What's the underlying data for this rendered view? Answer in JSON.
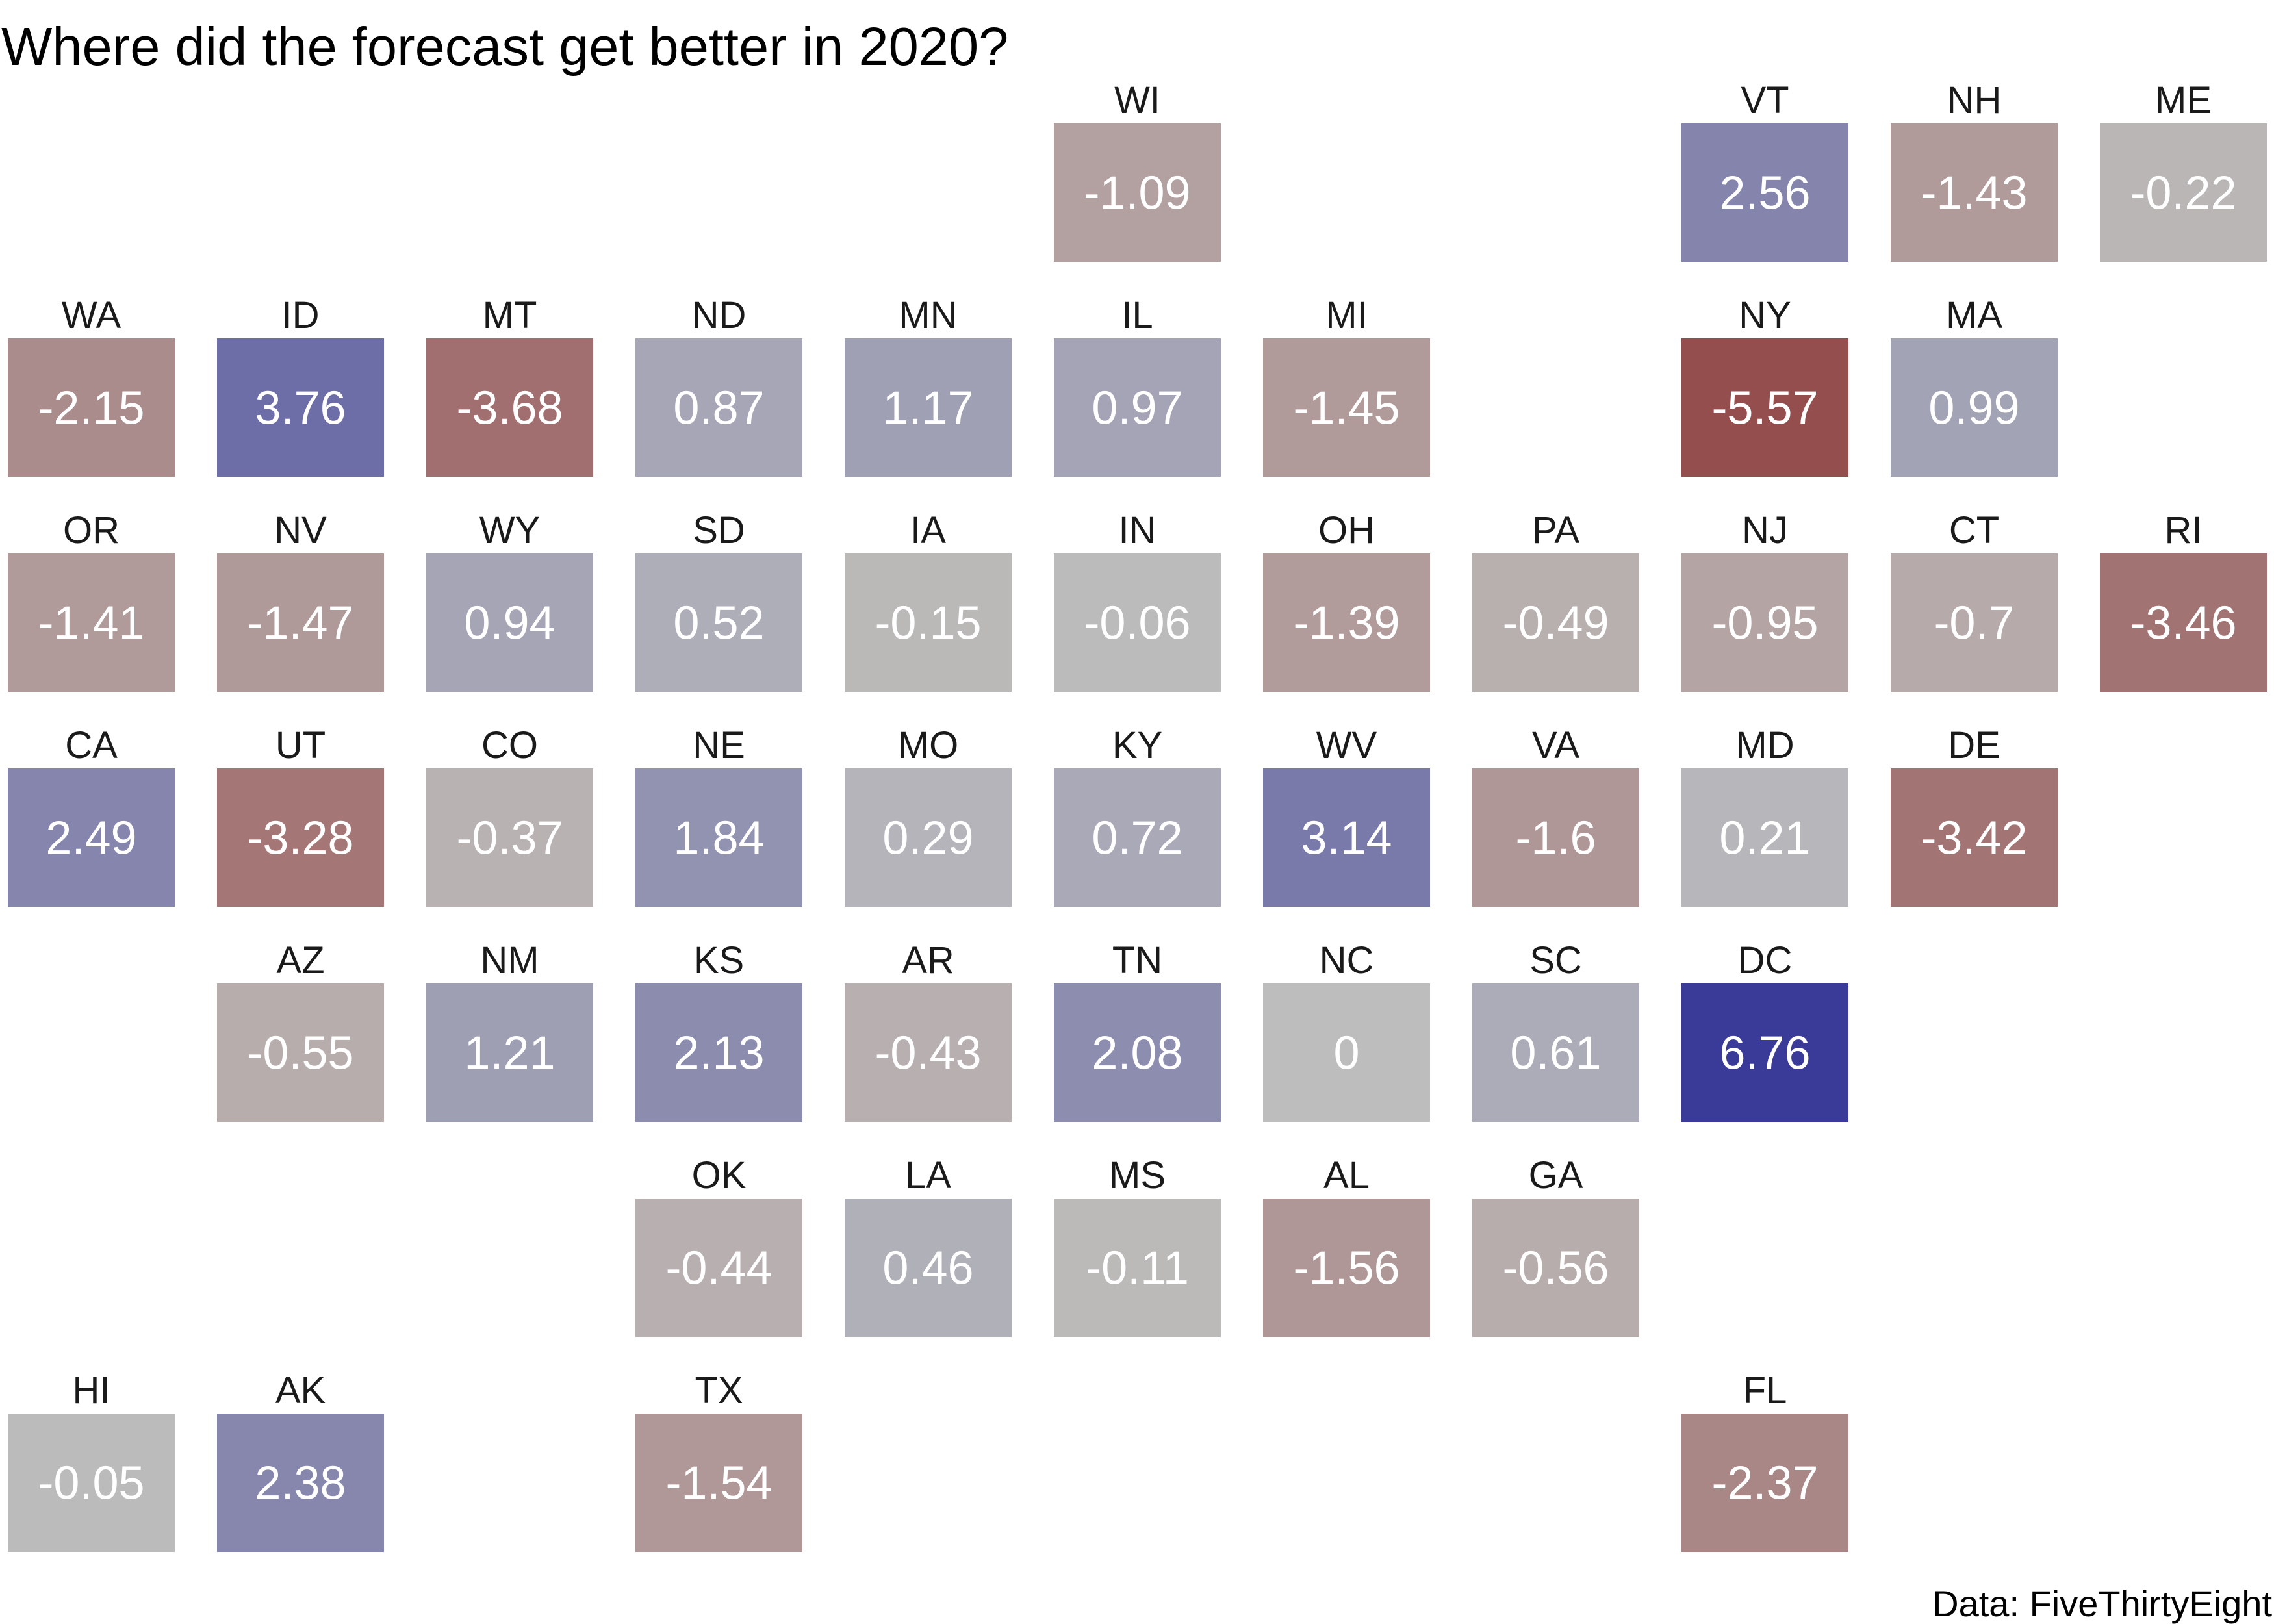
{
  "chart_data": {
    "type": "heatmap",
    "title": "Where did the forecast get better in 2020?",
    "caption": "Data: FiveThirtyEight",
    "color_scale": {
      "negative": "#8e3a3a",
      "neutral": "#bdbdbd",
      "positive": "#3a3a98",
      "min": -6.76,
      "max": 6.76
    },
    "tiles": [
      {
        "state": "WI",
        "value": -1.09,
        "row": 0,
        "col": 5
      },
      {
        "state": "VT",
        "value": 2.56,
        "row": 0,
        "col": 8
      },
      {
        "state": "NH",
        "value": -1.43,
        "row": 0,
        "col": 9
      },
      {
        "state": "ME",
        "value": -0.22,
        "row": 0,
        "col": 10
      },
      {
        "state": "WA",
        "value": -2.15,
        "row": 1,
        "col": 0
      },
      {
        "state": "ID",
        "value": 3.76,
        "row": 1,
        "col": 1
      },
      {
        "state": "MT",
        "value": -3.68,
        "row": 1,
        "col": 2
      },
      {
        "state": "ND",
        "value": 0.87,
        "row": 1,
        "col": 3
      },
      {
        "state": "MN",
        "value": 1.17,
        "row": 1,
        "col": 4
      },
      {
        "state": "IL",
        "value": 0.97,
        "row": 1,
        "col": 5
      },
      {
        "state": "MI",
        "value": -1.45,
        "row": 1,
        "col": 6
      },
      {
        "state": "NY",
        "value": -5.57,
        "row": 1,
        "col": 8
      },
      {
        "state": "MA",
        "value": 0.99,
        "row": 1,
        "col": 9
      },
      {
        "state": "OR",
        "value": -1.41,
        "row": 2,
        "col": 0
      },
      {
        "state": "NV",
        "value": -1.47,
        "row": 2,
        "col": 1
      },
      {
        "state": "WY",
        "value": 0.94,
        "row": 2,
        "col": 2
      },
      {
        "state": "SD",
        "value": 0.52,
        "row": 2,
        "col": 3
      },
      {
        "state": "IA",
        "value": -0.15,
        "row": 2,
        "col": 4
      },
      {
        "state": "IN",
        "value": -0.06,
        "row": 2,
        "col": 5
      },
      {
        "state": "OH",
        "value": -1.39,
        "row": 2,
        "col": 6
      },
      {
        "state": "PA",
        "value": -0.49,
        "row": 2,
        "col": 7
      },
      {
        "state": "NJ",
        "value": -0.95,
        "row": 2,
        "col": 8
      },
      {
        "state": "CT",
        "value": -0.7,
        "row": 2,
        "col": 9
      },
      {
        "state": "RI",
        "value": -3.46,
        "row": 2,
        "col": 10
      },
      {
        "state": "CA",
        "value": 2.49,
        "row": 3,
        "col": 0
      },
      {
        "state": "UT",
        "value": -3.28,
        "row": 3,
        "col": 1
      },
      {
        "state": "CO",
        "value": -0.37,
        "row": 3,
        "col": 2
      },
      {
        "state": "NE",
        "value": 1.84,
        "row": 3,
        "col": 3
      },
      {
        "state": "MO",
        "value": 0.29,
        "row": 3,
        "col": 4
      },
      {
        "state": "KY",
        "value": 0.72,
        "row": 3,
        "col": 5
      },
      {
        "state": "WV",
        "value": 3.14,
        "row": 3,
        "col": 6
      },
      {
        "state": "VA",
        "value": -1.6,
        "row": 3,
        "col": 7
      },
      {
        "state": "MD",
        "value": 0.21,
        "row": 3,
        "col": 8
      },
      {
        "state": "DE",
        "value": -3.42,
        "row": 3,
        "col": 9
      },
      {
        "state": "AZ",
        "value": -0.55,
        "row": 4,
        "col": 1
      },
      {
        "state": "NM",
        "value": 1.21,
        "row": 4,
        "col": 2
      },
      {
        "state": "KS",
        "value": 2.13,
        "row": 4,
        "col": 3
      },
      {
        "state": "AR",
        "value": -0.43,
        "row": 4,
        "col": 4
      },
      {
        "state": "TN",
        "value": 2.08,
        "row": 4,
        "col": 5
      },
      {
        "state": "NC",
        "value": 0,
        "row": 4,
        "col": 6
      },
      {
        "state": "SC",
        "value": 0.61,
        "row": 4,
        "col": 7
      },
      {
        "state": "DC",
        "value": 6.76,
        "row": 4,
        "col": 8
      },
      {
        "state": "OK",
        "value": -0.44,
        "row": 5,
        "col": 3
      },
      {
        "state": "LA",
        "value": 0.46,
        "row": 5,
        "col": 4
      },
      {
        "state": "MS",
        "value": -0.11,
        "row": 5,
        "col": 5
      },
      {
        "state": "AL",
        "value": -1.56,
        "row": 5,
        "col": 6
      },
      {
        "state": "GA",
        "value": -0.56,
        "row": 5,
        "col": 7
      },
      {
        "state": "HI",
        "value": -0.05,
        "row": 6,
        "col": 0
      },
      {
        "state": "AK",
        "value": 2.38,
        "row": 6,
        "col": 1
      },
      {
        "state": "TX",
        "value": -1.54,
        "row": 6,
        "col": 3
      },
      {
        "state": "FL",
        "value": -2.37,
        "row": 6,
        "col": 8
      }
    ]
  }
}
